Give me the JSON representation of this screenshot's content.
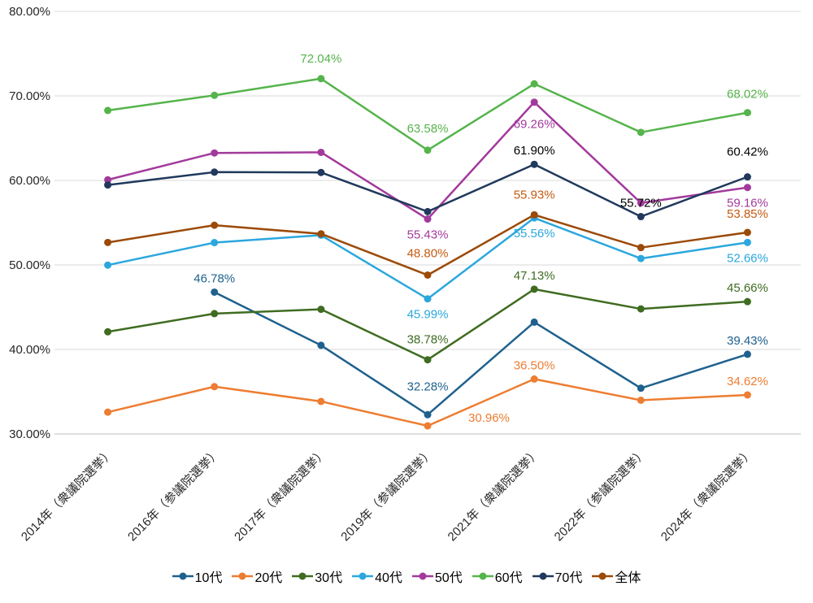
{
  "chart_data": {
    "type": "line",
    "title": "",
    "xlabel": "",
    "ylabel": "",
    "grid": true,
    "legend_position": "bottom",
    "ylim": [
      30,
      80
    ],
    "ytick_step": 10,
    "ytick_labels": [
      "30.00%",
      "40.00%",
      "50.00%",
      "60.00%",
      "70.00%",
      "80.00%"
    ],
    "categories": [
      "2014年（衆議院選挙）",
      "2016年（参議院選挙）",
      "2017年（衆議院選挙）",
      "2019年（参議院選挙）",
      "2021年（衆議院選挙）",
      "2022年（参議院選挙）",
      "2024年（衆議院選挙）"
    ],
    "series": [
      {
        "name": "10代",
        "color": "#1F618D",
        "label_color": "#1F618D",
        "values": [
          null,
          46.78,
          40.49,
          32.28,
          43.23,
          35.42,
          39.43
        ]
      },
      {
        "name": "20代",
        "color": "#ED7D31",
        "label_color": "#ED7D31",
        "values": [
          32.58,
          35.6,
          33.85,
          30.96,
          36.5,
          33.99,
          34.62
        ]
      },
      {
        "name": "30代",
        "color": "#3F6C21",
        "label_color": "#3F6C21",
        "values": [
          42.09,
          44.24,
          44.75,
          38.78,
          47.13,
          44.8,
          45.66
        ]
      },
      {
        "name": "40代",
        "color": "#2BA7DE",
        "label_color": "#2BA7DE",
        "values": [
          49.98,
          52.64,
          53.52,
          45.99,
          55.56,
          50.76,
          52.66
        ]
      },
      {
        "name": "50代",
        "color": "#A23A9C",
        "label_color": "#A23A9C",
        "values": [
          60.07,
          63.25,
          63.32,
          55.43,
          69.26,
          57.33,
          59.16
        ]
      },
      {
        "name": "60代",
        "color": "#55B44B",
        "label_color": "#55B44B",
        "values": [
          68.28,
          70.07,
          72.04,
          63.58,
          71.43,
          65.69,
          68.02
        ]
      },
      {
        "name": "70代",
        "color": "#20395C",
        "label_color": "#000000",
        "values": [
          59.46,
          60.98,
          60.94,
          56.31,
          61.9,
          55.72,
          60.42
        ]
      },
      {
        "name": "全体",
        "color": "#9C4A08",
        "label_color": "#C55A11",
        "values": [
          52.66,
          54.7,
          53.68,
          48.8,
          55.93,
          52.05,
          53.85
        ]
      }
    ],
    "point_labels": [
      {
        "series": 0,
        "index": 1,
        "pos": "above"
      },
      {
        "series": 0,
        "index": 3,
        "pos": "above",
        "dy": -18
      },
      {
        "series": 0,
        "index": 6,
        "pos": "above"
      },
      {
        "series": 1,
        "index": 3,
        "pos": "right",
        "dx": 38,
        "dy": -10
      },
      {
        "series": 1,
        "index": 4,
        "pos": "above"
      },
      {
        "series": 1,
        "index": 6,
        "pos": "above"
      },
      {
        "series": 2,
        "index": 3,
        "pos": "above",
        "dy": -8
      },
      {
        "series": 2,
        "index": 4,
        "pos": "above"
      },
      {
        "series": 2,
        "index": 6,
        "pos": "above"
      },
      {
        "series": 3,
        "index": 3,
        "pos": "below"
      },
      {
        "series": 3,
        "index": 4,
        "pos": "below"
      },
      {
        "series": 3,
        "index": 6,
        "pos": "below"
      },
      {
        "series": 4,
        "index": 3,
        "pos": "below"
      },
      {
        "series": 4,
        "index": 4,
        "pos": "below",
        "dy": 8
      },
      {
        "series": 4,
        "index": 6,
        "pos": "below"
      },
      {
        "series": 5,
        "index": 2,
        "pos": "above",
        "dy": -8
      },
      {
        "series": 5,
        "index": 3,
        "pos": "above",
        "dy": -10
      },
      {
        "series": 5,
        "index": 6,
        "pos": "above",
        "dy": -6
      },
      {
        "series": 6,
        "index": 4,
        "pos": "above"
      },
      {
        "series": 6,
        "index": 5,
        "pos": "above"
      },
      {
        "series": 6,
        "index": 6,
        "pos": "above",
        "dy": -14
      },
      {
        "series": 7,
        "index": 3,
        "pos": "above",
        "dy": -10
      },
      {
        "series": 7,
        "index": 4,
        "pos": "above",
        "dy": -8
      },
      {
        "series": 7,
        "index": 6,
        "pos": "above",
        "dy": -6
      }
    ],
    "value_format": "percent2"
  },
  "colors": {
    "grid": "#D9D9D9",
    "baseline": "#BFBFBF",
    "axis_text": "#262626",
    "background": "#FFFFFF"
  }
}
